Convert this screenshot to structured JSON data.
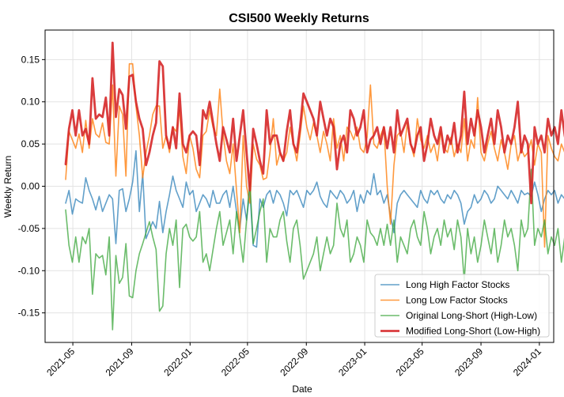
{
  "chart_data": {
    "type": "line",
    "title": "CSI500 Weekly Returns",
    "xlabel": "Date",
    "ylabel": "Weekly Return",
    "x_ticks": [
      "2021-05",
      "2021-09",
      "2022-01",
      "2022-05",
      "2022-09",
      "2023-01",
      "2023-05",
      "2023-09",
      "2024-01"
    ],
    "xlim": [
      "2021-03-04",
      "2024-01-31"
    ],
    "y_ticks": [
      "-0.15",
      "-0.10",
      "-0.05",
      "0.00",
      "0.05",
      "0.10",
      "0.15"
    ],
    "ylim": [
      -0.185,
      0.185
    ],
    "grid": true,
    "legend_position": "lower right",
    "start_date": "2021-04-16",
    "frequency": "weekly",
    "series": [
      {
        "name": "Long High Factor Stocks",
        "color": "#1f77b4",
        "line_width": 1.6,
        "opacity": 0.7,
        "values": [
          -0.02,
          -0.005,
          -0.033,
          -0.015,
          -0.018,
          -0.02,
          0.01,
          -0.005,
          -0.015,
          -0.028,
          -0.012,
          -0.03,
          -0.02,
          -0.01,
          -0.015,
          -0.068,
          -0.005,
          -0.003,
          -0.03,
          -0.015,
          0.005,
          0.042,
          -0.03,
          0.015,
          -0.062,
          -0.052,
          -0.042,
          -0.05,
          -0.018,
          -0.055,
          -0.03,
          -0.01,
          0.012,
          -0.005,
          -0.015,
          -0.025,
          0.005,
          -0.01,
          -0.005,
          -0.03,
          -0.02,
          -0.01,
          -0.015,
          -0.025,
          -0.005,
          -0.02,
          -0.02,
          -0.01,
          -0.005,
          -0.025,
          0.0,
          -0.03,
          -0.05,
          -0.015,
          -0.04,
          -0.005,
          -0.07,
          -0.072,
          -0.015,
          -0.025,
          -0.01,
          -0.005,
          -0.02,
          -0.005,
          -0.01,
          -0.02,
          -0.035,
          -0.005,
          -0.01,
          -0.005,
          -0.015,
          -0.025,
          -0.005,
          -0.01,
          -0.005,
          0.005,
          -0.012,
          -0.02,
          -0.025,
          -0.005,
          -0.01,
          -0.015,
          -0.005,
          -0.01,
          -0.02,
          -0.015,
          -0.005,
          -0.03,
          -0.01,
          -0.02,
          -0.005,
          -0.01,
          0.015,
          -0.01,
          -0.005,
          -0.02,
          -0.01,
          -0.035,
          -0.055,
          -0.02,
          -0.01,
          -0.005,
          -0.01,
          -0.015,
          -0.02,
          -0.025,
          -0.005,
          -0.015,
          -0.02,
          -0.005,
          -0.01,
          -0.005,
          -0.015,
          -0.02,
          -0.01,
          -0.015,
          -0.005,
          -0.01,
          -0.02,
          -0.045,
          -0.03,
          -0.025,
          -0.01,
          -0.02,
          -0.015,
          -0.005,
          -0.01,
          -0.02,
          -0.015,
          0.0,
          -0.005,
          -0.01,
          -0.015,
          -0.005,
          -0.012,
          -0.02,
          -0.005,
          -0.01,
          -0.008,
          -0.012,
          0.005,
          -0.01,
          -0.03,
          -0.015,
          -0.005,
          -0.01,
          -0.005,
          -0.02,
          -0.01,
          -0.015,
          -0.005,
          -0.01,
          -0.035,
          -0.012,
          -0.01,
          -0.005,
          -0.02,
          -0.02,
          -0.003,
          0.015,
          -0.005,
          -0.012
        ]
      },
      {
        "name": "Long Low Factor Stocks",
        "color": "#ff7f0e",
        "line_width": 1.6,
        "opacity": 0.8,
        "values": [
          0.008,
          0.065,
          0.055,
          0.045,
          0.062,
          0.04,
          0.078,
          0.045,
          0.08,
          0.062,
          0.058,
          0.075,
          0.052,
          0.05,
          0.12,
          0.012,
          0.095,
          0.085,
          0.012,
          0.145,
          0.145,
          0.095,
          0.06,
          0.01,
          0.04,
          0.06,
          0.085,
          0.095,
          0.095,
          0.045,
          0.06,
          0.04,
          0.07,
          0.065,
          0.09,
          0.035,
          0.015,
          0.06,
          0.045,
          0.02,
          0.01,
          0.06,
          0.065,
          0.09,
          0.07,
          0.06,
          0.115,
          0.062,
          0.03,
          0.015,
          0.05,
          -0.005,
          -0.055,
          0.06,
          0.0,
          -0.02,
          0.05,
          0.032,
          0.025,
          0.008,
          0.01,
          0.04,
          0.08,
          0.025,
          0.04,
          0.03,
          0.04,
          0.07,
          0.05,
          0.03,
          0.06,
          0.095,
          0.07,
          0.055,
          0.075,
          0.06,
          0.04,
          0.065,
          0.05,
          0.03,
          0.08,
          0.045,
          0.06,
          0.03,
          0.07,
          0.065,
          0.055,
          0.07,
          0.045,
          0.04,
          0.058,
          0.12,
          0.05,
          0.045,
          0.06,
          0.07,
          0.0,
          -0.045,
          0.025,
          0.06,
          0.065,
          0.04,
          0.075,
          0.05,
          0.035,
          0.08,
          0.055,
          0.045,
          0.06,
          0.04,
          0.05,
          0.03,
          0.065,
          0.045,
          0.04,
          0.058,
          0.035,
          0.05,
          0.04,
          0.08,
          0.03,
          0.055,
          0.045,
          0.105,
          0.04,
          0.03,
          0.05,
          0.065,
          0.045,
          0.03,
          0.055,
          0.04,
          0.02,
          0.05,
          0.06,
          0.03,
          0.045,
          0.035,
          0.04,
          0.055,
          0.025,
          0.05,
          0.04,
          -0.072,
          0.06,
          0.045,
          0.035,
          0.03,
          0.05,
          0.04,
          0.065,
          0.045,
          0.035,
          0.05,
          0.025,
          0.04,
          0.03,
          0.03,
          0.035,
          0.025,
          0.02,
          0.03,
          0.04,
          0.062
        ]
      },
      {
        "name": "Original Long-Short (High-Low)",
        "color": "#2ca02c",
        "line_width": 1.6,
        "opacity": 0.7,
        "values": [
          -0.028,
          -0.07,
          -0.09,
          -0.06,
          -0.09,
          -0.06,
          -0.068,
          -0.05,
          -0.128,
          -0.08,
          -0.085,
          -0.082,
          -0.105,
          -0.06,
          -0.17,
          -0.082,
          -0.115,
          -0.108,
          -0.068,
          -0.13,
          -0.132,
          -0.1,
          -0.08,
          -0.068,
          -0.055,
          -0.042,
          -0.06,
          -0.075,
          -0.148,
          -0.142,
          -0.08,
          -0.05,
          -0.07,
          -0.04,
          -0.12,
          -0.05,
          -0.045,
          -0.06,
          -0.065,
          -0.06,
          -0.03,
          -0.09,
          -0.08,
          -0.1,
          -0.075,
          -0.05,
          -0.03,
          -0.07,
          -0.055,
          -0.04,
          -0.08,
          -0.03,
          -0.06,
          -0.09,
          -0.04,
          0.005,
          -0.068,
          -0.05,
          -0.03,
          -0.015,
          -0.09,
          -0.05,
          -0.06,
          -0.06,
          -0.04,
          -0.03,
          -0.065,
          -0.09,
          -0.05,
          -0.04,
          -0.07,
          -0.11,
          -0.1,
          -0.09,
          -0.08,
          -0.06,
          -0.1,
          -0.08,
          -0.06,
          -0.08,
          -0.07,
          -0.02,
          -0.05,
          -0.06,
          -0.04,
          -0.09,
          -0.08,
          -0.06,
          -0.07,
          -0.09,
          -0.04,
          -0.055,
          -0.06,
          -0.07,
          -0.05,
          -0.07,
          -0.045,
          -0.07,
          -0.04,
          -0.09,
          -0.06,
          -0.07,
          -0.08,
          -0.05,
          -0.04,
          -0.06,
          -0.07,
          -0.03,
          -0.05,
          -0.08,
          -0.06,
          -0.05,
          -0.07,
          -0.04,
          -0.06,
          -0.05,
          -0.075,
          -0.04,
          -0.06,
          -0.112,
          -0.05,
          -0.08,
          -0.06,
          -0.09,
          -0.07,
          -0.04,
          -0.06,
          -0.08,
          -0.05,
          -0.09,
          -0.07,
          -0.04,
          -0.06,
          -0.05,
          -0.07,
          -0.1,
          -0.04,
          -0.06,
          -0.05,
          0.02,
          -0.07,
          -0.05,
          -0.06,
          -0.04,
          -0.08,
          -0.06,
          -0.07,
          -0.05,
          -0.09,
          -0.06,
          -0.04,
          -0.05,
          -0.06,
          -0.05,
          -0.04,
          -0.03,
          -0.02,
          -0.045,
          -0.02,
          -0.074
        ]
      },
      {
        "name": "Modified Long-Short (Low-High)",
        "color": "#d62728",
        "line_width": 2.8,
        "opacity": 0.9,
        "values": [
          0.026,
          0.068,
          0.09,
          0.06,
          0.09,
          0.06,
          0.068,
          0.05,
          0.128,
          0.08,
          0.085,
          0.082,
          0.105,
          0.06,
          0.17,
          0.082,
          0.115,
          0.108,
          0.068,
          0.13,
          0.132,
          0.1,
          0.08,
          0.068,
          0.025,
          0.04,
          0.06,
          0.075,
          0.148,
          0.142,
          0.06,
          0.045,
          0.07,
          0.045,
          0.11,
          0.05,
          0.04,
          0.06,
          0.065,
          0.06,
          0.025,
          0.09,
          0.08,
          0.1,
          0.075,
          0.05,
          0.03,
          0.07,
          0.055,
          0.04,
          0.08,
          0.03,
          0.06,
          0.09,
          0.04,
          -0.005,
          0.068,
          0.05,
          0.03,
          0.015,
          0.09,
          0.05,
          0.06,
          0.06,
          0.04,
          0.03,
          0.065,
          0.09,
          0.05,
          0.04,
          0.07,
          0.11,
          0.1,
          0.09,
          0.08,
          0.06,
          0.1,
          0.08,
          0.06,
          0.08,
          0.07,
          0.02,
          0.05,
          0.06,
          0.04,
          0.09,
          0.08,
          0.06,
          0.07,
          0.09,
          0.04,
          0.055,
          0.06,
          0.07,
          0.05,
          0.07,
          0.045,
          0.07,
          0.04,
          0.09,
          0.06,
          0.07,
          0.08,
          0.05,
          0.04,
          0.06,
          0.07,
          0.03,
          0.05,
          0.08,
          0.06,
          0.05,
          0.07,
          0.04,
          0.06,
          0.05,
          0.075,
          0.04,
          0.06,
          0.112,
          0.05,
          0.08,
          0.06,
          0.09,
          0.07,
          0.04,
          0.06,
          0.08,
          0.05,
          0.09,
          0.07,
          0.04,
          0.06,
          0.05,
          0.07,
          0.1,
          0.04,
          0.06,
          0.05,
          -0.02,
          0.07,
          0.05,
          0.06,
          0.04,
          0.08,
          0.06,
          0.07,
          0.05,
          0.09,
          0.06,
          0.04,
          0.05,
          0.06,
          0.05,
          0.04,
          0.03,
          0.02,
          0.045,
          0.02,
          0.074
        ]
      }
    ]
  }
}
